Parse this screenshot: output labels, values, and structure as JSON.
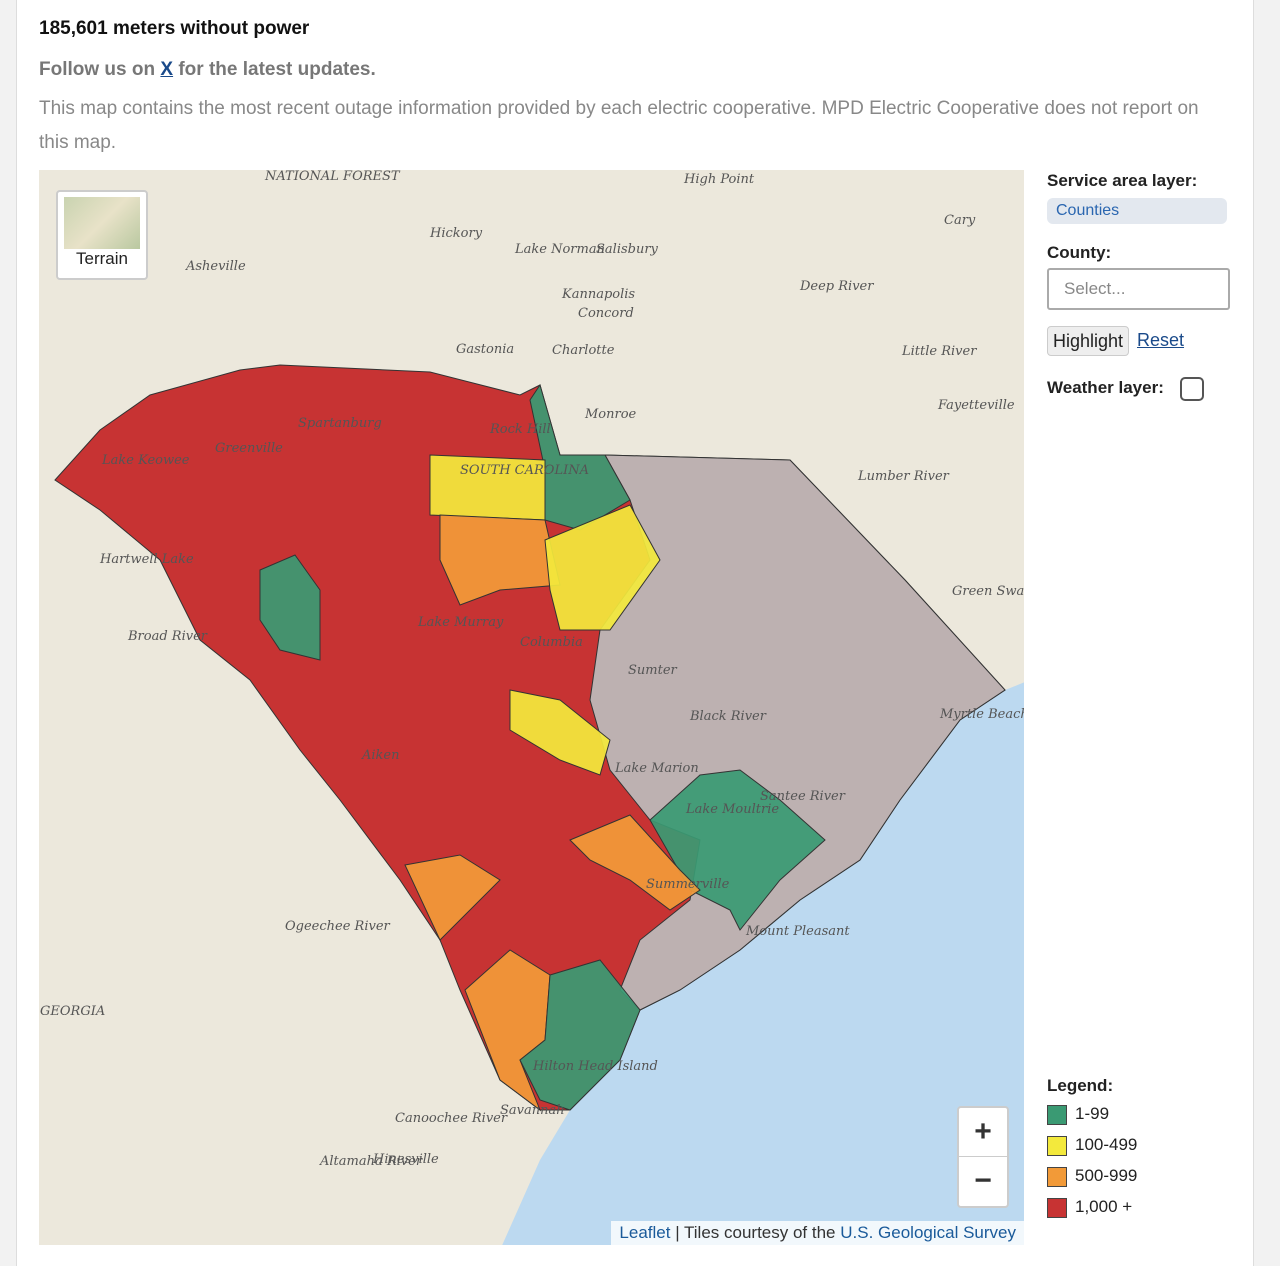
{
  "header": {
    "meters_text": "185,601 meters without power",
    "follow_before": "Follow us on",
    "follow_link": "X",
    "follow_after": "for the latest updates.",
    "description": "This map contains the most recent outage information provided by each electric cooperative. MPD Electric Cooperative does not report on this map."
  },
  "map": {
    "terrain_button": "Terrain",
    "zoom_in": "+",
    "zoom_out": "−",
    "attribution_leaflet": "Leaflet",
    "attribution_middle": "| Tiles courtesy of the",
    "attribution_usgs": "U.S. Geological Survey",
    "labels": [
      "Asheville",
      "Hickory",
      "Salisbury",
      "High Point",
      "Lake Norman",
      "Kannapolis",
      "Concord",
      "Charlotte",
      "Gastonia",
      "Monroe",
      "Fayetteville",
      "Rock Hill",
      "Spartanburg",
      "Greenville",
      "Lake Keowee",
      "SOUTH CAROLINA",
      "Hartwell Lake",
      "Lake Murray",
      "Columbia",
      "Sumter",
      "Aiken",
      "Lake Moultrie",
      "Summerville",
      "Mount Pleasant",
      "Hilton Head Island",
      "Savannah",
      "Hinesville",
      "GEORGIA",
      "NATIONAL FOREST",
      "Deep River",
      "Little River",
      "Lumber River",
      "Green Swamp",
      "Broad River",
      "Ogeechee River",
      "Canoochee River",
      "Altamaha River",
      "Santee River",
      "Black River",
      "Lake Marion",
      "Myrtle Beach International Airport",
      "Cary"
    ]
  },
  "controls": {
    "service_area_label": "Service area layer:",
    "service_area_value": "Counties",
    "county_label": "County:",
    "county_placeholder": "Select...",
    "highlight": "Highlight",
    "reset": "Reset",
    "weather_label": "Weather layer:"
  },
  "legend": {
    "title": "Legend:",
    "items": [
      {
        "label": "1-99",
        "color": "#3a9a73"
      },
      {
        "label": "100-499",
        "color": "#f3e93c"
      },
      {
        "label": "500-999",
        "color": "#f29a38"
      },
      {
        "label": "1,000 +",
        "color": "#c73333"
      }
    ]
  }
}
